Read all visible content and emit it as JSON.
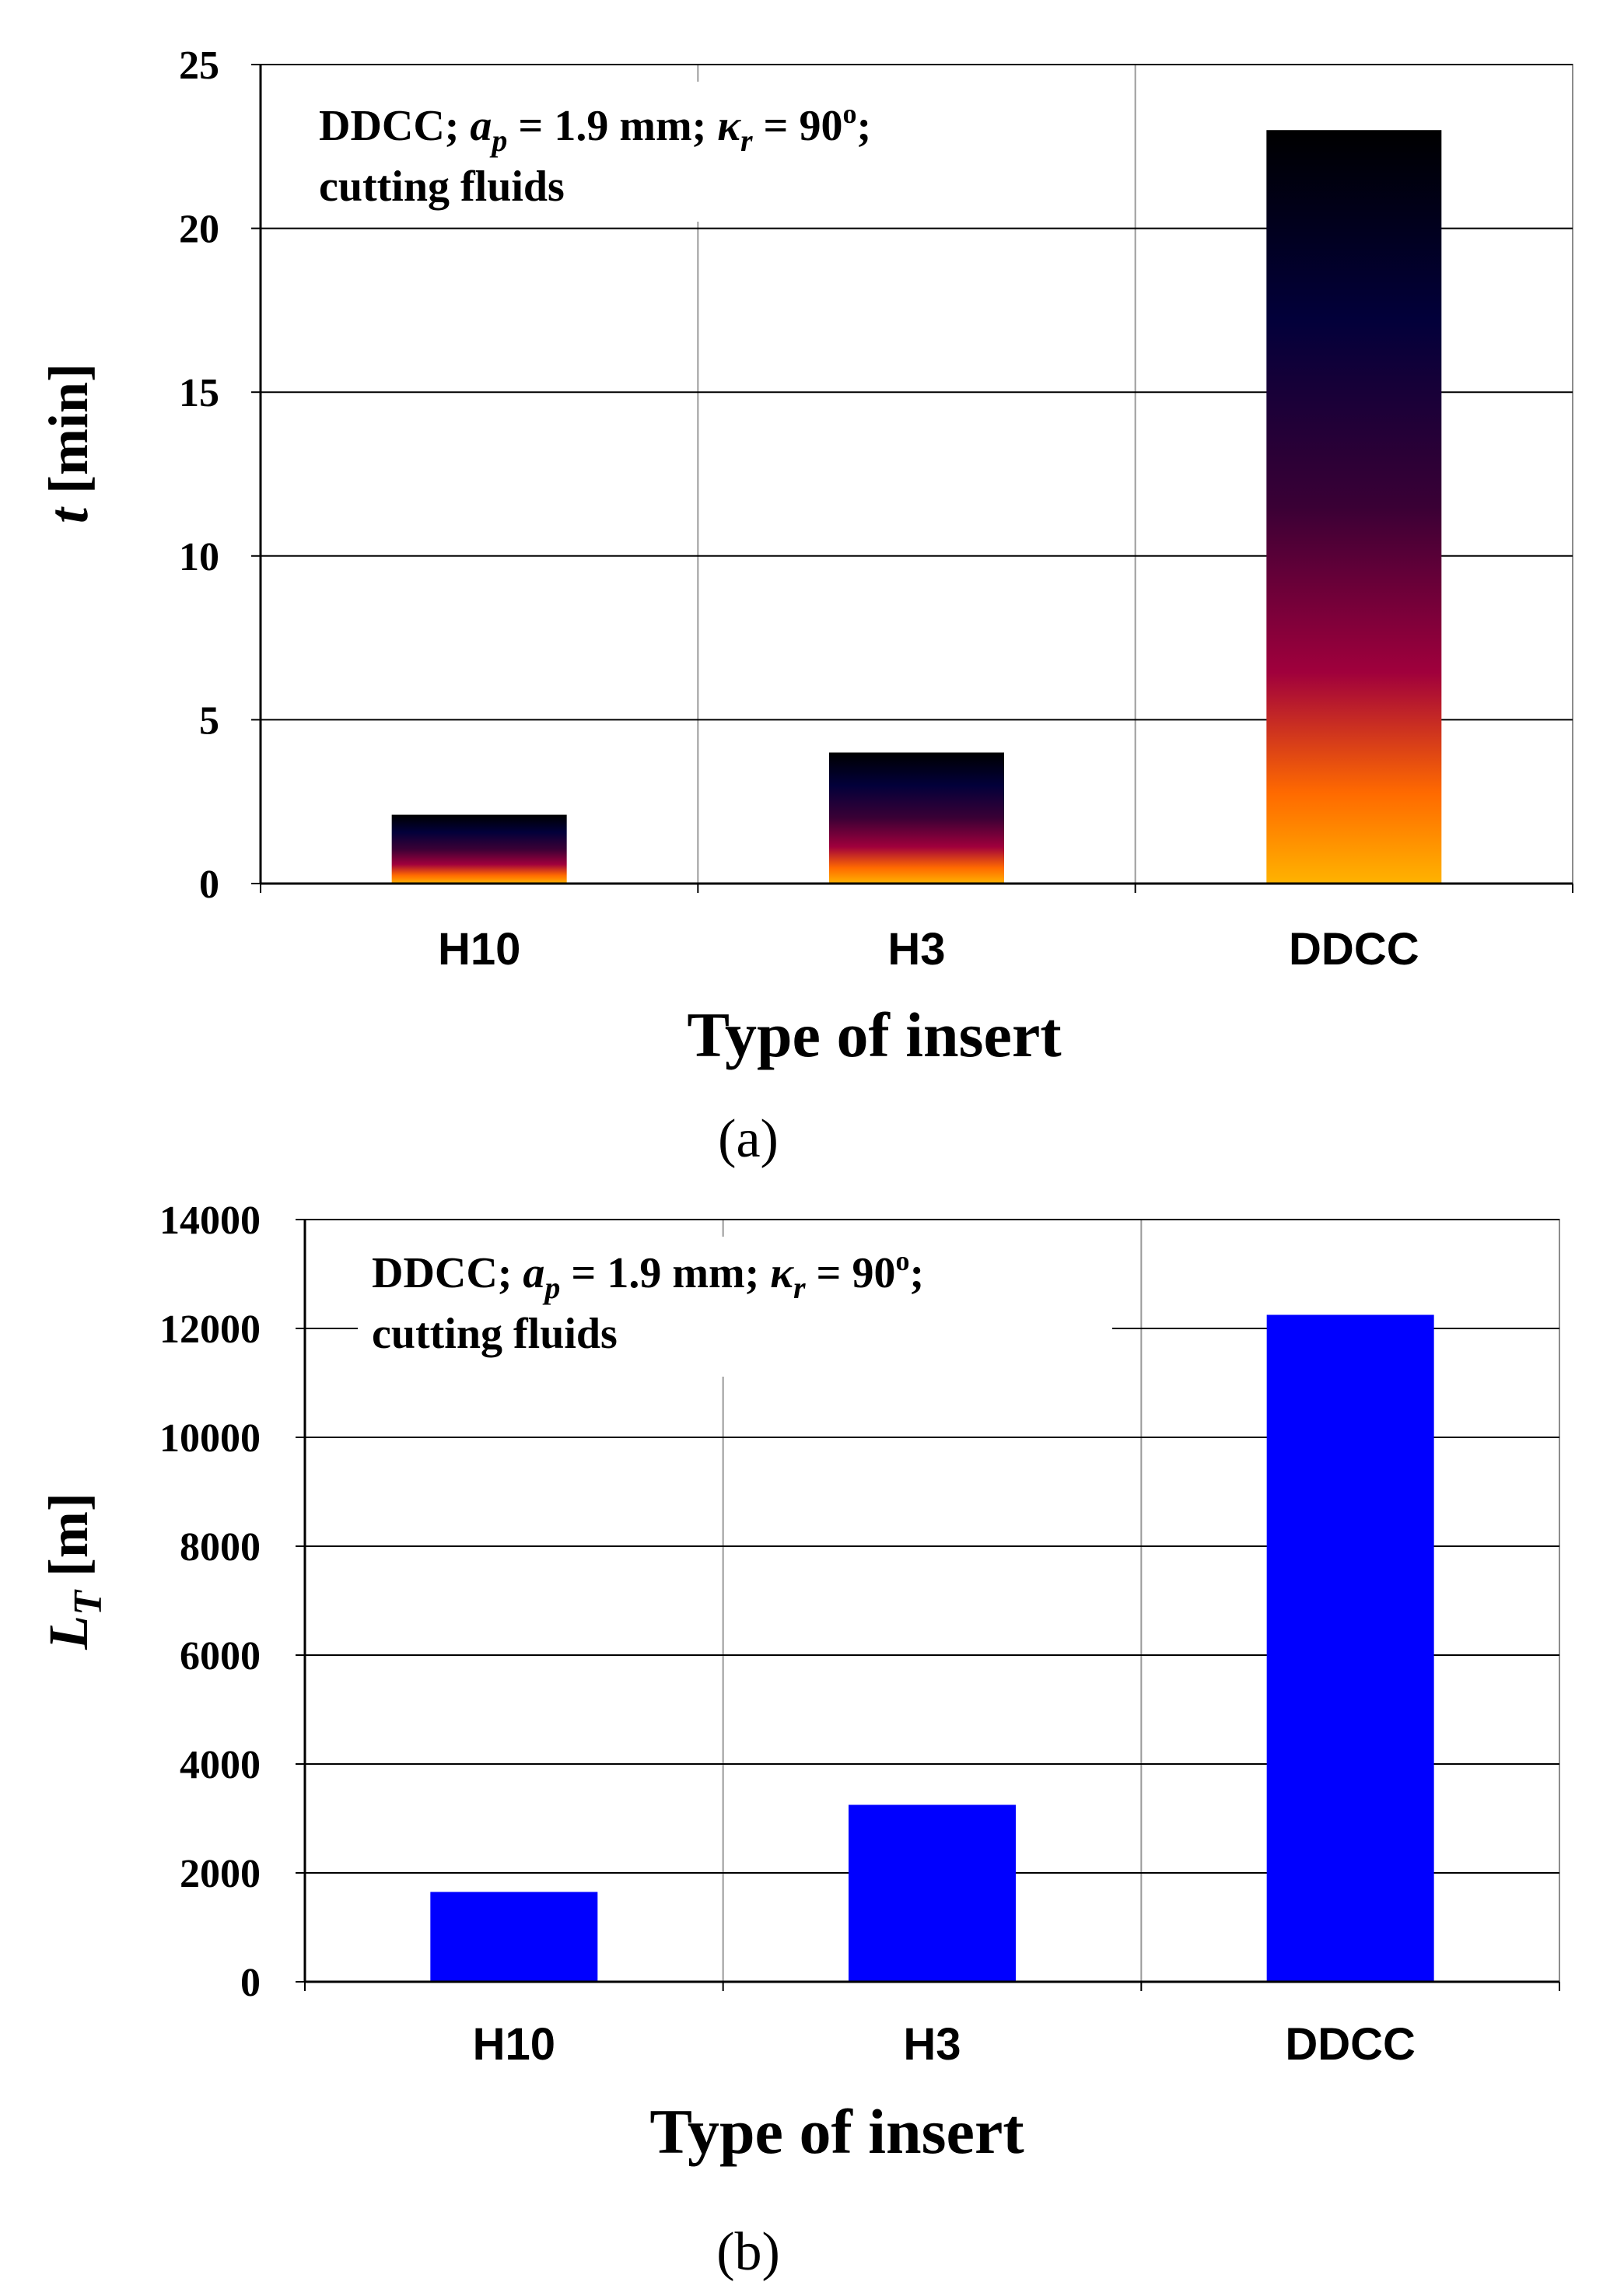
{
  "chart_data": [
    {
      "type": "bar",
      "panel_label": "(a)",
      "categories": [
        "H10",
        "H3",
        "DDCC"
      ],
      "values": [
        2.1,
        4.0,
        23.0
      ],
      "ylim": [
        0,
        25
      ],
      "yticks": [
        0,
        5,
        10,
        15,
        20,
        25
      ],
      "ylabel_main": "t",
      "ylabel_sub": "",
      "ylabel_unit": " [min]",
      "xlabel": "Type of insert",
      "annotation": {
        "part1": "DDCC; ",
        "var_a": "a",
        "sub_p": "p",
        "part2": " = 1.9  mm; ",
        "var_k": "κ",
        "sub_r": "r",
        "part3": " = 90",
        "deg": "o",
        "part4": ";",
        "line2": "cutting fluids"
      },
      "bar_style": "gradient",
      "gradient_colors": [
        "#ffb300",
        "#ff6a00",
        "#a0003c",
        "#3a0035",
        "#02003a",
        "#000000"
      ],
      "grid": true
    },
    {
      "type": "bar",
      "panel_label": "(b)",
      "categories": [
        "H10",
        "H3",
        "DDCC"
      ],
      "values": [
        1650,
        3250,
        12250
      ],
      "ylim": [
        0,
        14000
      ],
      "yticks": [
        0,
        2000,
        4000,
        6000,
        8000,
        10000,
        12000,
        14000
      ],
      "ylabel_main": "L",
      "ylabel_sub": "T",
      "ylabel_unit": " [m]",
      "xlabel": "Type of insert",
      "annotation": {
        "part1": "DDCC; ",
        "var_a": "a",
        "sub_p": "p",
        "part2": " = 1.9  mm; ",
        "var_k": "κ",
        "sub_r": "r",
        "part3": " = 90",
        "deg": "o",
        "part4": ";",
        "line2": "cutting fluids"
      },
      "bar_style": "solid",
      "bar_color": "#0000ff",
      "grid": true
    }
  ]
}
